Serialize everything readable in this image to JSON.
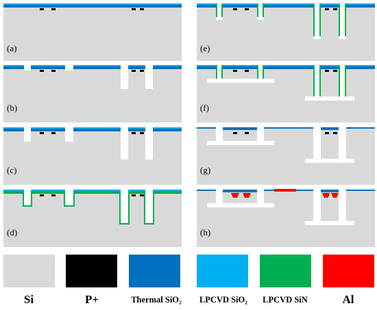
{
  "panels": [
    {
      "label": "(a)"
    },
    {
      "label": "(b)"
    },
    {
      "label": "(c)"
    },
    {
      "label": "(d)"
    },
    {
      "label": "(e)"
    },
    {
      "label": "(f)"
    },
    {
      "label": "(g)"
    },
    {
      "label": "(h)"
    }
  ],
  "legend": [
    {
      "label": "Si"
    },
    {
      "label": "P+"
    },
    {
      "label": "Thermal SiO₂"
    },
    {
      "label": "LPCVD SiO₂"
    },
    {
      "label": "LPCVD SiN"
    },
    {
      "label": "Al"
    }
  ]
}
